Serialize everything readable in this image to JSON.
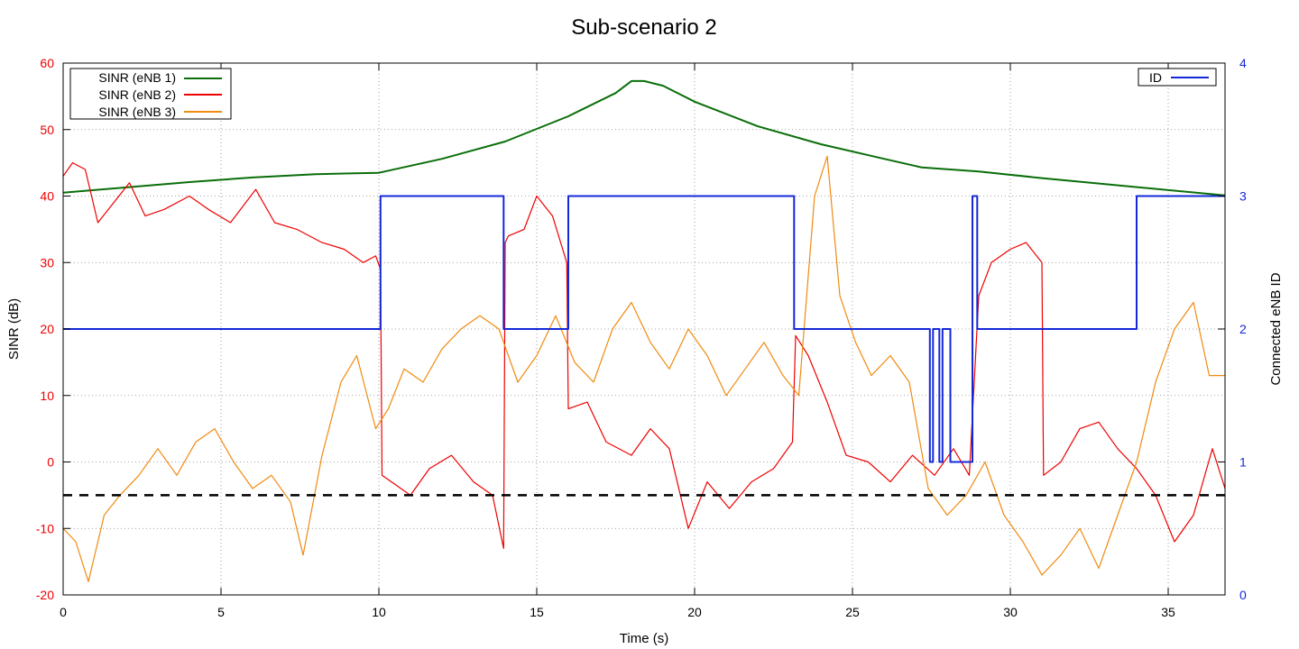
{
  "chart_data": {
    "type": "line",
    "title": "Sub-scenario 2",
    "xlabel": "Time (s)",
    "ylabel": "SINR (dB)",
    "y2label": "Connected eNB ID",
    "xlim": [
      0,
      36.8
    ],
    "ylim": [
      -20,
      60
    ],
    "y2lim": [
      0,
      4
    ],
    "xticks": [
      "0",
      "5",
      "10",
      "15",
      "20",
      "25",
      "30",
      "35"
    ],
    "yticks": [
      "-20",
      "-10",
      "0",
      "10",
      "20",
      "30",
      "40",
      "50",
      "60"
    ],
    "y2ticks": [
      "0",
      "1",
      "2",
      "3",
      "4"
    ],
    "grid": true,
    "grid_style": "dotted",
    "legend_left_placement": "top-left",
    "legend_right_placement": "top-right",
    "colors": {
      "enb1": "#0a6e0a",
      "enb2": "#ee0000",
      "enb3": "#f08a10",
      "id": "#1428d8",
      "threshold": "#000000",
      "left_axis_tick": "#ee0000",
      "right_axis_tick": "#1428d8"
    },
    "series": [
      {
        "name": "SINR (eNB 1)",
        "axis": "left",
        "x": [
          0,
          2,
          4,
          6,
          8,
          10,
          12,
          14,
          16,
          17.5,
          18,
          18.4,
          19,
          20,
          22,
          24,
          26,
          27.2,
          29,
          31,
          33,
          35,
          36.8
        ],
        "y": [
          40.5,
          41.3,
          42.1,
          42.8,
          43.3,
          43.5,
          45.6,
          48.2,
          52.0,
          55.5,
          57.3,
          57.3,
          56.6,
          54.2,
          50.5,
          47.8,
          45.6,
          44.3,
          43.7,
          42.7,
          41.8,
          40.9,
          40.1
        ]
      },
      {
        "name": "SINR (eNB 2)",
        "axis": "left",
        "x": [
          0,
          0.3,
          0.7,
          1.1,
          1.6,
          2.1,
          2.6,
          3.2,
          4.0,
          4.6,
          5.3,
          6.1,
          6.7,
          7.4,
          8.2,
          8.9,
          9.5,
          9.9,
          10.05,
          10.1,
          10.4,
          11.0,
          11.6,
          12.3,
          13.0,
          13.6,
          13.95,
          14.0,
          14.1,
          14.6,
          15.0,
          15.5,
          15.95,
          16.0,
          16.6,
          17.2,
          18.0,
          18.6,
          19.2,
          19.8,
          20.4,
          21.1,
          21.8,
          22.5,
          23.1,
          23.2,
          23.6,
          24.2,
          24.8,
          25.5,
          26.2,
          26.9,
          27.6,
          28.2,
          28.7,
          29.0,
          29.4,
          30.0,
          30.5,
          31.0,
          31.05,
          31.6,
          32.2,
          32.8,
          33.4,
          34.0,
          34.6,
          35.2,
          35.8,
          36.4,
          36.8
        ],
        "y": [
          43,
          45,
          44,
          36,
          39,
          42,
          37,
          38,
          40,
          38,
          36,
          41,
          36,
          35,
          33,
          32,
          30,
          31,
          29,
          -2,
          -3,
          -5,
          -1,
          1,
          -3,
          -5,
          -13,
          33,
          34,
          35,
          40,
          37,
          30,
          8,
          9,
          3,
          1,
          5,
          2,
          -10,
          -3,
          -7,
          -3,
          -1,
          3,
          19,
          16,
          9,
          1,
          0,
          -3,
          1,
          -2,
          2,
          -2,
          25,
          30,
          32,
          33,
          30,
          -2,
          0,
          5,
          6,
          2,
          -1,
          -5,
          -12,
          -8,
          2,
          -4
        ]
      },
      {
        "name": "SINR (eNB 3)",
        "axis": "left",
        "x": [
          0,
          0.4,
          0.8,
          1.3,
          1.8,
          2.4,
          3.0,
          3.6,
          4.2,
          4.8,
          5.4,
          6.0,
          6.6,
          7.2,
          7.6,
          8.2,
          8.8,
          9.3,
          9.9,
          10.3,
          10.8,
          11.4,
          12.0,
          12.6,
          13.2,
          13.8,
          14.4,
          15.0,
          15.6,
          16.2,
          16.8,
          17.4,
          18.0,
          18.6,
          19.2,
          19.8,
          20.4,
          21.0,
          21.6,
          22.2,
          22.8,
          23.3,
          23.8,
          24.2,
          24.6,
          25.1,
          25.6,
          26.2,
          26.8,
          27.4,
          28.0,
          28.6,
          29.2,
          29.8,
          30.4,
          31.0,
          31.6,
          32.2,
          32.8,
          33.4,
          34.0,
          34.6,
          35.2,
          35.8,
          36.3,
          36.8
        ],
        "y": [
          -10,
          -12,
          -18,
          -8,
          -5,
          -2,
          2,
          -2,
          3,
          5,
          0,
          -4,
          -2,
          -6,
          -14,
          1,
          12,
          16,
          5,
          8,
          14,
          12,
          17,
          20,
          22,
          20,
          12,
          16,
          22,
          15,
          12,
          20,
          24,
          18,
          14,
          20,
          16,
          10,
          14,
          18,
          13,
          10,
          40,
          46,
          25,
          18,
          13,
          16,
          12,
          -4,
          -8,
          -5,
          0,
          -8,
          -12,
          -17,
          -14,
          -10,
          -16,
          -8,
          0,
          12,
          20,
          24,
          13,
          13
        ]
      },
      {
        "name": "ID",
        "axis": "right",
        "x": [
          0,
          10.05,
          10.05,
          13.95,
          13.95,
          16.0,
          16.0,
          23.15,
          23.15,
          27.2,
          27.2,
          27.45,
          27.45,
          27.55,
          27.55,
          27.75,
          27.75,
          27.85,
          27.85,
          28.1,
          28.1,
          28.2,
          28.2,
          28.8,
          28.8,
          28.95,
          28.95,
          34.0,
          34.0,
          36.8
        ],
        "y": [
          2,
          2,
          3,
          3,
          2,
          2,
          3,
          3,
          2,
          2,
          2,
          2,
          1,
          1,
          2,
          2,
          1,
          1,
          2,
          2,
          1,
          1,
          1,
          1,
          3,
          3,
          2,
          2,
          3,
          3
        ]
      }
    ],
    "annotations": [
      {
        "type": "horizontal-dashed-line",
        "axis": "left",
        "y": -5
      }
    ],
    "legend_left": [
      "SINR (eNB 1)",
      "SINR (eNB 2)",
      "SINR (eNB 3)"
    ],
    "legend_right": [
      "ID"
    ]
  }
}
